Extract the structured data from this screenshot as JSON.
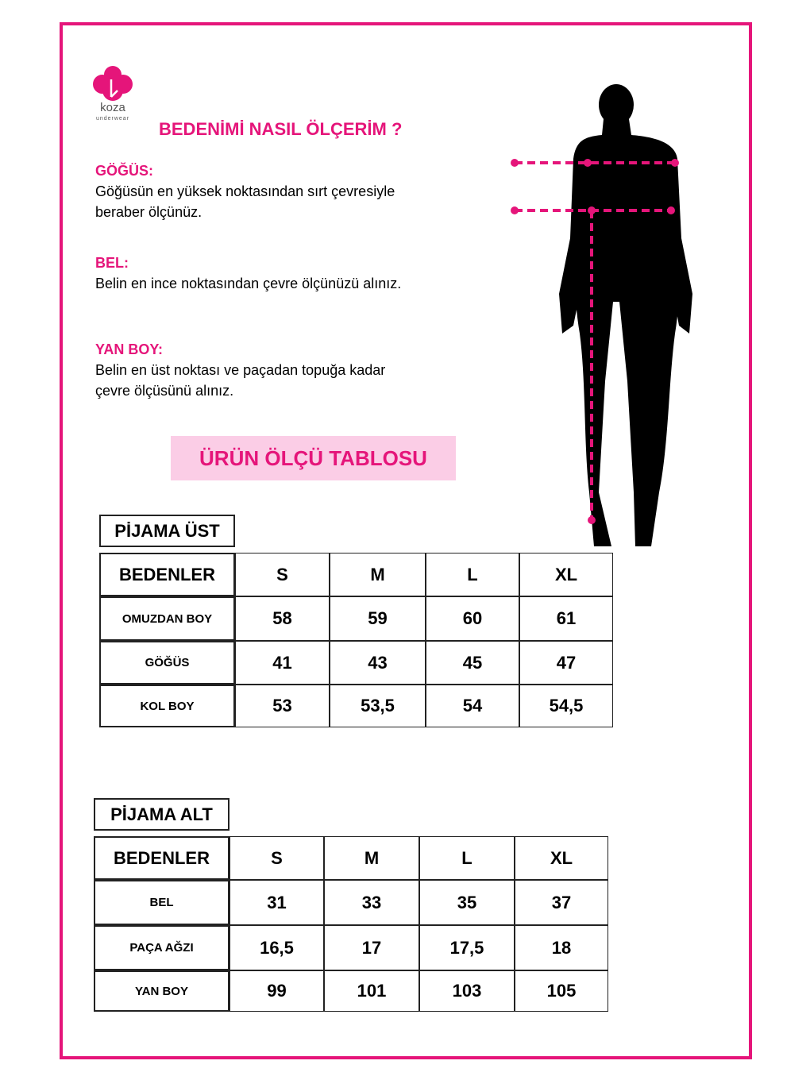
{
  "logo": {
    "brand": "koza",
    "tagline": "underwear"
  },
  "title": "BEDENİMİ NASIL ÖLÇERİM ?",
  "sections": [
    {
      "heading": "GÖĞÜS:",
      "lines": [
        "Göğüsün en yüksek noktasından sırt çevresiyle",
        "beraber ölçünüz."
      ]
    },
    {
      "heading": "BEL:",
      "lines": [
        "Belin en ince noktasından çevre ölçünüzü alınız."
      ]
    },
    {
      "heading": "YAN BOY:",
      "lines": [
        "Belin en üst noktası ve paçadan topuğa kadar",
        "çevre ölçüsünü alınız."
      ]
    }
  ],
  "banner": "ÜRÜN ÖLÇÜ TABLOSU",
  "tables": [
    {
      "title": "PİJAMA ÜST",
      "header": [
        "BEDENLER",
        "S",
        "M",
        "L",
        "XL"
      ],
      "rows": [
        [
          "OMUZDAN BOY",
          "58",
          "59",
          "60",
          "61"
        ],
        [
          "GÖĞÜS",
          "41",
          "43",
          "45",
          "47"
        ],
        [
          "KOL BOY",
          "53",
          "53,5",
          "54",
          "54,5"
        ]
      ]
    },
    {
      "title": "PİJAMA ALT",
      "header": [
        "BEDENLER",
        "S",
        "M",
        "L",
        "XL"
      ],
      "rows": [
        [
          "BEL",
          "31",
          "33",
          "35",
          "37"
        ],
        [
          "PAÇA AĞZI",
          "16,5",
          "17",
          "17,5",
          "18"
        ],
        [
          "YAN BOY",
          "99",
          "101",
          "103",
          "105"
        ]
      ]
    }
  ]
}
